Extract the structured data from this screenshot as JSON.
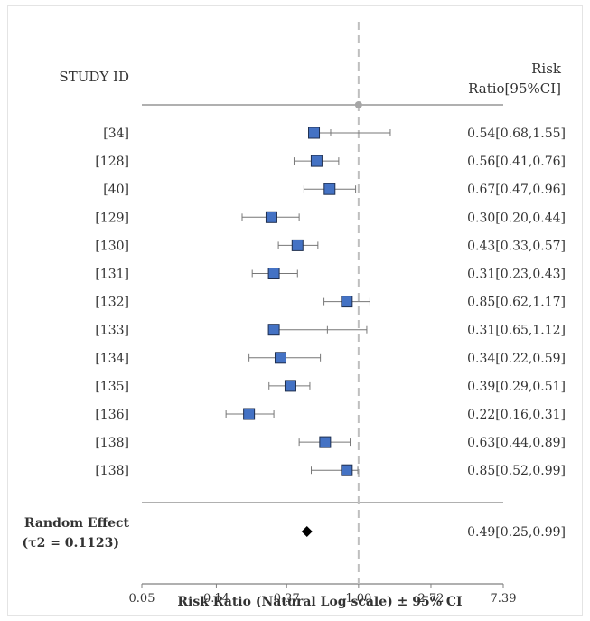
{
  "header": {
    "left": "STUDY ID",
    "right_line1": "Risk",
    "right_line2": "Ratio[95%CI]"
  },
  "summary_label": {
    "line1": "Random Effect",
    "line2": "(τ2 = 0.1123)"
  },
  "chart_data": {
    "type": "forest",
    "xscale": "log",
    "xlabel": "Risk Ratio (Natural Log scale) ±  95% CI",
    "xlim": [
      0.05,
      7.39
    ],
    "xticks": [
      "0.05",
      "0.14",
      "0.37",
      "1.00",
      "2.72",
      "7.39"
    ],
    "reference_line": 1.0,
    "studies": [
      {
        "id": "[34]",
        "rr": 0.54,
        "lo": 0.68,
        "hi": 1.55,
        "text": "0.54[0.68,1.55]"
      },
      {
        "id": "[128]",
        "rr": 0.56,
        "lo": 0.41,
        "hi": 0.76,
        "text": "0.56[0.41,0.76]"
      },
      {
        "id": "[40]",
        "rr": 0.67,
        "lo": 0.47,
        "hi": 0.96,
        "text": "0.67[0.47,0.96]"
      },
      {
        "id": "[129]",
        "rr": 0.3,
        "lo": 0.2,
        "hi": 0.44,
        "text": "0.30[0.20,0.44]"
      },
      {
        "id": "[130]",
        "rr": 0.43,
        "lo": 0.33,
        "hi": 0.57,
        "text": "0.43[0.33,0.57]"
      },
      {
        "id": "[131]",
        "rr": 0.31,
        "lo": 0.23,
        "hi": 0.43,
        "text": "0.31[0.23,0.43]"
      },
      {
        "id": "[132]",
        "rr": 0.85,
        "lo": 0.62,
        "hi": 1.17,
        "text": "0.85[0.62,1.17]"
      },
      {
        "id": "[133]",
        "rr": 0.31,
        "lo": 0.65,
        "hi": 1.12,
        "text": "0.31[0.65,1.12]"
      },
      {
        "id": "[134]",
        "rr": 0.34,
        "lo": 0.22,
        "hi": 0.59,
        "text": "0.34[0.22,0.59]"
      },
      {
        "id": "[135]",
        "rr": 0.39,
        "lo": 0.29,
        "hi": 0.51,
        "text": "0.39[0.29,0.51]"
      },
      {
        "id": "[136]",
        "rr": 0.22,
        "lo": 0.16,
        "hi": 0.31,
        "text": "0.22[0.16,0.31]"
      },
      {
        "id": "[138]",
        "rr": 0.63,
        "lo": 0.44,
        "hi": 0.89,
        "text": "0.63[0.44,0.89]"
      },
      {
        "id": "[138]",
        "rr": 0.85,
        "lo": 0.52,
        "hi": 0.99,
        "text": "0.85[0.52,0.99]"
      }
    ],
    "summary": {
      "rr": 0.49,
      "lo": 0.25,
      "hi": 0.99,
      "text": "0.49[0.25,0.99]"
    },
    "colors": {
      "square_fill": "#4472c4",
      "square_stroke": "#1f2f4f",
      "whisker": "#777777",
      "reference": "#bfbfbf",
      "axis": "#808080",
      "diamond": "#000000"
    }
  }
}
